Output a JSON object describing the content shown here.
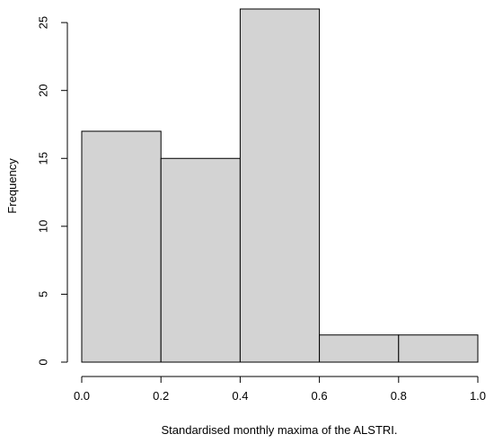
{
  "chart_data": {
    "type": "bar",
    "bins": [
      {
        "from": 0.0,
        "to": 0.2,
        "count": 17
      },
      {
        "from": 0.2,
        "to": 0.4,
        "count": 15
      },
      {
        "from": 0.4,
        "to": 0.6,
        "count": 26
      },
      {
        "from": 0.6,
        "to": 0.8,
        "count": 2
      },
      {
        "from": 0.8,
        "to": 1.0,
        "count": 2
      }
    ],
    "xlabel": "Standardised monthly maxima of the ALSTRI.",
    "ylabel": "Frequency",
    "x_ticks": [
      "0.0",
      "0.2",
      "0.4",
      "0.6",
      "0.8",
      "1.0"
    ],
    "y_ticks": [
      "0",
      "5",
      "10",
      "15",
      "20",
      "25"
    ],
    "xlim": [
      0.0,
      1.0
    ],
    "ylim": [
      0,
      26
    ],
    "bar_color": "#d3d3d3",
    "grid": false
  }
}
